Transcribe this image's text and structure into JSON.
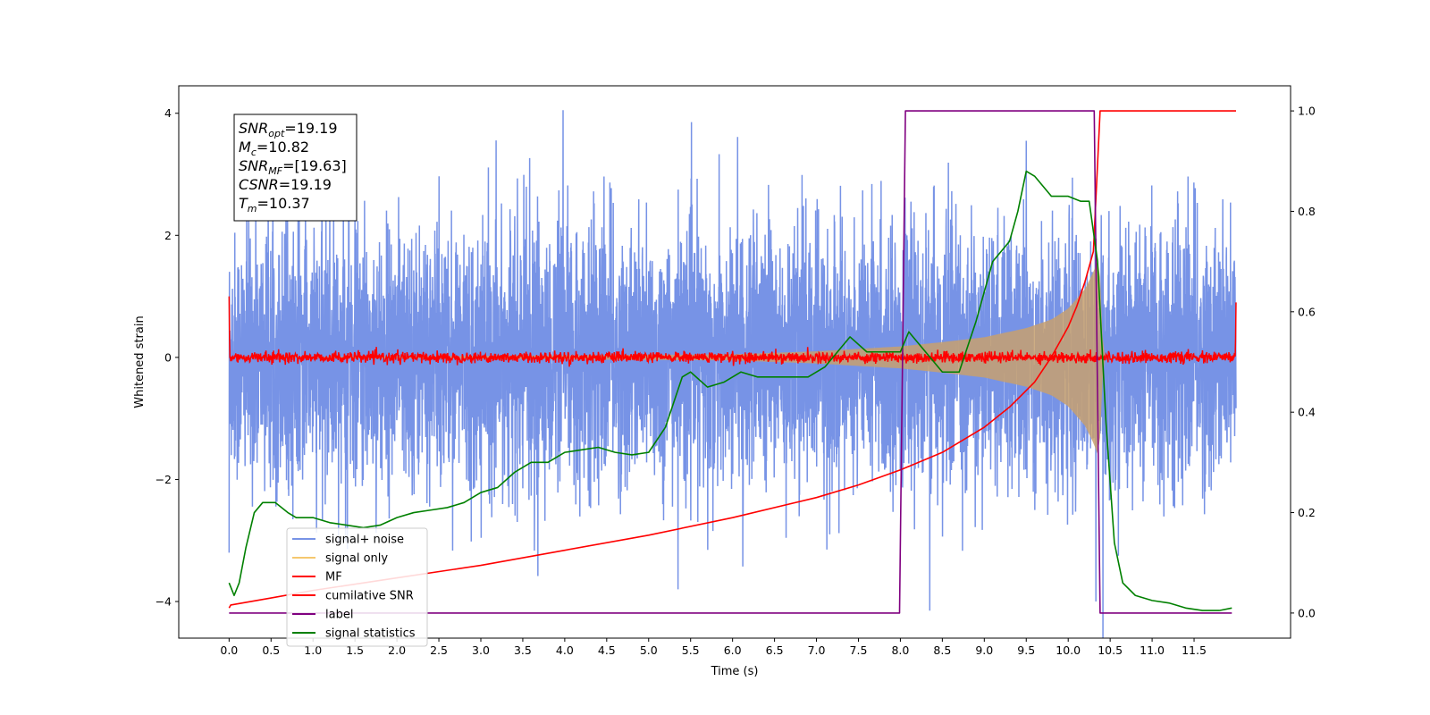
{
  "chart_data": {
    "type": "line",
    "xlabel": "Time (s)",
    "ylabel": "Whitened strain",
    "xlim": [
      -0.6,
      12.65
    ],
    "ylim": [
      -4.6,
      4.45
    ],
    "y2lim": [
      -0.05,
      1.05
    ],
    "x_ticks": [
      0.0,
      0.5,
      1.0,
      1.5,
      2.0,
      2.5,
      3.0,
      3.5,
      4.0,
      4.5,
      5.0,
      5.5,
      6.0,
      6.5,
      7.0,
      7.5,
      8.0,
      8.5,
      9.0,
      9.5,
      10.0,
      10.5,
      11.0,
      11.5
    ],
    "y_ticks": [
      -4,
      -2,
      0,
      2,
      4
    ],
    "y2_ticks": [
      0.0,
      0.2,
      0.4,
      0.6,
      0.8,
      1.0
    ],
    "grid": false,
    "legend_position": "lower-left",
    "annotation": {
      "lines": [
        {
          "main": "SNR",
          "sub": "opt",
          "value": "=19.19"
        },
        {
          "main": "M",
          "sub": "c",
          "value": "=10.82"
        },
        {
          "main": "SNR",
          "sub": "MF",
          "value": "=[19.63]"
        },
        {
          "main": "CSNR",
          "sub": "",
          "value": "=19.19"
        },
        {
          "main": "T",
          "sub": "m",
          "value": "=10.37"
        }
      ]
    },
    "series": [
      {
        "name": "signal+ noise",
        "color": "#7793e6",
        "axis": "left",
        "kind": "noise_band",
        "x_range": [
          0.0,
          12.0
        ],
        "typical_amplitude": 1.4,
        "peak_extremes": [
          [
            0.0,
            -3.2
          ],
          [
            3.98,
            4.05
          ],
          [
            5.35,
            -3.8
          ],
          [
            8.35,
            -4.15
          ],
          [
            10.33,
            -4.0
          ],
          [
            9.5,
            3.55
          ]
        ]
      },
      {
        "name": "signal only",
        "color": "#f5c86e",
        "axis": "left",
        "kind": "chirp_envelope",
        "x": [
          0.0,
          6.0,
          7.0,
          8.0,
          8.5,
          9.0,
          9.5,
          9.8,
          10.0,
          10.2,
          10.3,
          10.37,
          10.42,
          12.0
        ],
        "envelope": [
          0.0,
          0.05,
          0.1,
          0.18,
          0.25,
          0.33,
          0.48,
          0.62,
          0.8,
          1.12,
          1.4,
          1.65,
          0.0,
          0.0
        ]
      },
      {
        "name": "MF",
        "color": "#ff0000",
        "axis": "left",
        "kind": "noise_band",
        "x_range": [
          0.0,
          12.0
        ],
        "typical_amplitude": 0.1,
        "edge_values": [
          [
            0.0,
            1.0
          ],
          [
            12.0,
            0.9
          ]
        ]
      },
      {
        "name": "cumilative SNR",
        "color": "#ff0000",
        "axis": "right",
        "x": [
          0.0,
          0.02,
          0.5,
          1.0,
          2.0,
          3.0,
          4.0,
          5.0,
          6.0,
          7.0,
          7.5,
          8.0,
          8.5,
          9.0,
          9.3,
          9.6,
          9.8,
          10.0,
          10.1,
          10.2,
          10.3,
          10.38,
          12.0
        ],
        "values": [
          0.01,
          0.016,
          0.03,
          0.045,
          0.07,
          0.095,
          0.125,
          0.155,
          0.19,
          0.23,
          0.255,
          0.285,
          0.32,
          0.37,
          0.41,
          0.46,
          0.51,
          0.57,
          0.61,
          0.66,
          0.72,
          1.0,
          1.0
        ]
      },
      {
        "name": "label",
        "color": "#800080",
        "axis": "right",
        "x": [
          0.0,
          7.99,
          8.06,
          10.31,
          10.38,
          11.95
        ],
        "values": [
          0.0,
          0.0,
          1.0,
          1.0,
          0.0,
          0.0
        ]
      },
      {
        "name": "signal statistics",
        "color": "#008000",
        "axis": "right",
        "x": [
          0.0,
          0.06,
          0.12,
          0.2,
          0.3,
          0.4,
          0.5,
          0.55,
          0.7,
          0.8,
          1.0,
          1.2,
          1.4,
          1.6,
          1.8,
          2.0,
          2.2,
          2.4,
          2.6,
          2.8,
          3.0,
          3.2,
          3.4,
          3.6,
          3.8,
          4.0,
          4.2,
          4.4,
          4.6,
          4.8,
          5.0,
          5.2,
          5.3,
          5.4,
          5.5,
          5.7,
          5.9,
          6.1,
          6.3,
          6.5,
          6.7,
          6.9,
          7.1,
          7.3,
          7.4,
          7.6,
          7.8,
          8.0,
          8.1,
          8.3,
          8.5,
          8.7,
          8.9,
          9.1,
          9.3,
          9.4,
          9.5,
          9.6,
          9.8,
          10.0,
          10.15,
          10.25,
          10.35,
          10.45,
          10.55,
          10.65,
          10.8,
          11.0,
          11.2,
          11.4,
          11.6,
          11.8,
          11.95
        ],
        "values": [
          0.06,
          0.035,
          0.06,
          0.13,
          0.2,
          0.22,
          0.22,
          0.22,
          0.2,
          0.19,
          0.19,
          0.18,
          0.175,
          0.17,
          0.175,
          0.19,
          0.2,
          0.205,
          0.21,
          0.22,
          0.24,
          0.25,
          0.28,
          0.3,
          0.3,
          0.32,
          0.325,
          0.33,
          0.32,
          0.315,
          0.32,
          0.37,
          0.42,
          0.47,
          0.48,
          0.45,
          0.46,
          0.48,
          0.47,
          0.47,
          0.47,
          0.47,
          0.49,
          0.53,
          0.55,
          0.52,
          0.52,
          0.52,
          0.56,
          0.52,
          0.48,
          0.48,
          0.58,
          0.7,
          0.74,
          0.8,
          0.88,
          0.87,
          0.83,
          0.83,
          0.82,
          0.82,
          0.7,
          0.38,
          0.14,
          0.06,
          0.035,
          0.025,
          0.02,
          0.01,
          0.005,
          0.005,
          0.01
        ]
      }
    ]
  }
}
